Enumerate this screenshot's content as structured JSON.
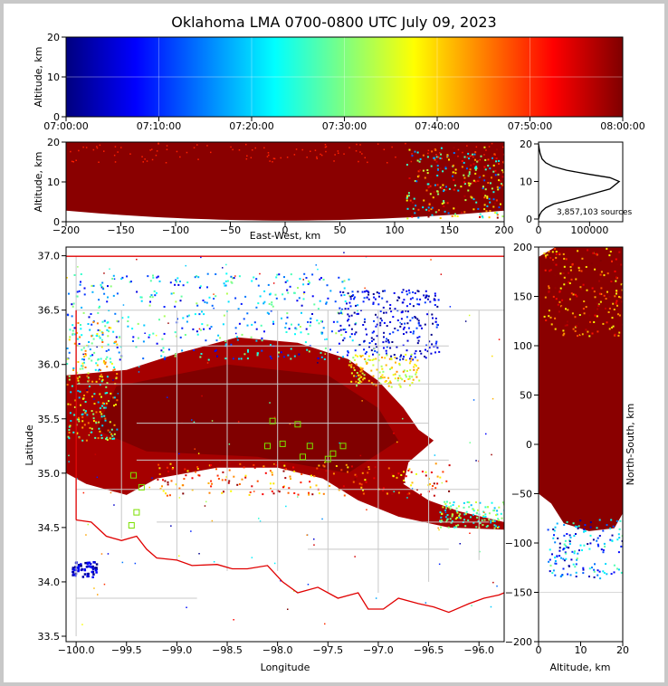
{
  "title": "Oklahoma LMA 0700-0800 UTC July 09, 2023",
  "chart_data": [
    {
      "panel": "time-altitude",
      "type": "scatter",
      "ylabel": "Altitude, km",
      "ylim": [
        0,
        20
      ],
      "yticks": [
        "0",
        "10",
        "20"
      ],
      "xticks": [
        "07:00:00",
        "07:10:00",
        "07:20:00",
        "07:30:00",
        "07:40:00",
        "07:50:00",
        "08:00:00"
      ],
      "colormap": "jet, colored by time"
    },
    {
      "panel": "east-west-altitude",
      "type": "scatter",
      "xlabel": "East-West, km",
      "ylabel": "Altitude, km",
      "xlim": [
        -200,
        200
      ],
      "ylim": [
        0,
        20
      ],
      "xticks": [
        "−200",
        "−150",
        "−100",
        "−50",
        "0",
        "50",
        "100",
        "150",
        "200"
      ],
      "yticks": [
        "0",
        "10",
        "20"
      ]
    },
    {
      "panel": "altitude-histogram",
      "type": "line",
      "annotation": "3,857,103 sources",
      "xticks": [
        "0",
        "100000"
      ],
      "yticks": [
        "0",
        "10",
        "20"
      ],
      "x": [
        0,
        2000,
        6000,
        14000,
        30000,
        60000,
        100000,
        140000,
        158000,
        140000,
        95000,
        55000,
        28000,
        14000,
        7000,
        3000,
        1000,
        0
      ],
      "y": [
        0,
        1,
        2,
        3,
        4,
        5,
        6.5,
        8,
        10,
        11,
        12,
        13,
        14,
        15,
        16,
        17.5,
        19,
        20
      ]
    },
    {
      "panel": "plan-view",
      "type": "scatter",
      "xlabel": "Longitude",
      "ylabel": "Latitude",
      "xlim": [
        -100.1,
        -95.75
      ],
      "ylim": [
        33.45,
        37.08
      ],
      "xticks": [
        "−100.0",
        "−99.5",
        "−99.0",
        "−98.5",
        "−98.0",
        "−97.5",
        "−97.0",
        "−96.5",
        "−96.0"
      ],
      "yticks": [
        "33.5",
        "34.0",
        "34.5",
        "35.0",
        "35.5",
        "36.0",
        "36.5",
        "37.0"
      ]
    },
    {
      "panel": "north-south-altitude",
      "type": "scatter",
      "xlabel": "Altitude, km",
      "ylabel": "North-South, km",
      "xlim": [
        0,
        20
      ],
      "ylim": [
        -200,
        200
      ],
      "xticks": [
        "0",
        "10",
        "20"
      ],
      "yticks": [
        "200",
        "150",
        "100",
        "50",
        "0",
        "−50",
        "−100",
        "−150",
        "−200"
      ]
    }
  ]
}
